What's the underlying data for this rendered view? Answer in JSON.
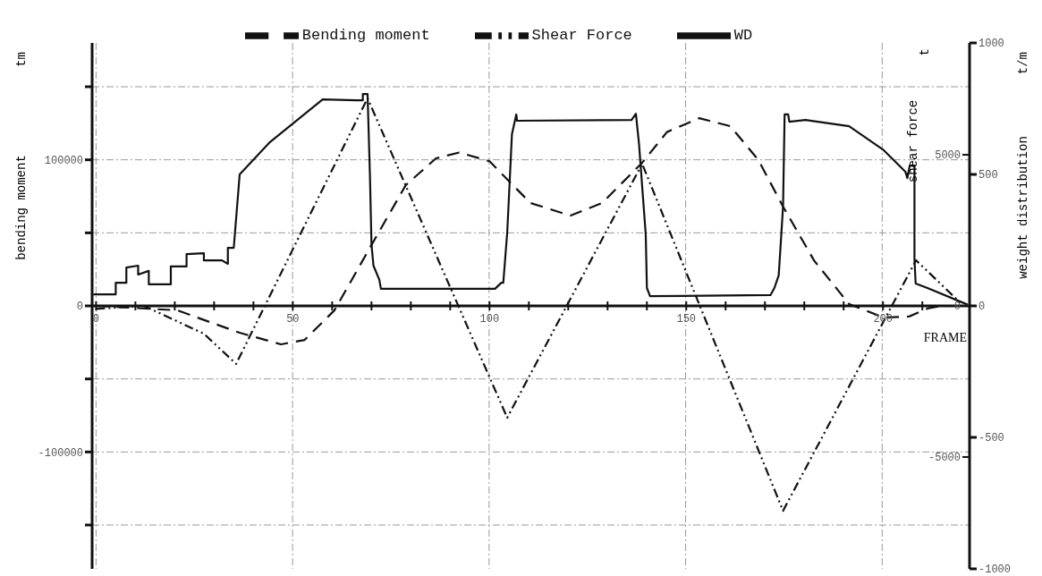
{
  "chart_data": {
    "type": "line",
    "xlabel": "FRAME",
    "ylabel": "bending moment tm",
    "y2label": "shear force t",
    "y3label": "weight distribution t/m",
    "legend": "top",
    "grid": true,
    "xlim": [
      -1,
      222
    ],
    "xticks": [
      0,
      {
        "value": 10,
        "label": null
      },
      {
        "value": 20,
        "label": null
      },
      {
        "value": 30,
        "label": null
      },
      {
        "value": 40,
        "label": null
      },
      50,
      {
        "value": 60,
        "label": null
      },
      {
        "value": 70,
        "label": null
      },
      {
        "value": 80,
        "label": null
      },
      {
        "value": 90,
        "label": null
      },
      100,
      {
        "value": 110,
        "label": null
      },
      {
        "value": 120,
        "label": null
      },
      {
        "value": 130,
        "label": null
      },
      {
        "value": 140,
        "label": null
      },
      150,
      {
        "value": 160,
        "label": null
      },
      {
        "value": 170,
        "label": null
      },
      {
        "value": 180,
        "label": null
      },
      {
        "value": 190,
        "label": null
      },
      200,
      {
        "value": 210,
        "label": null
      }
    ],
    "ylim": [
      -180000,
      180000
    ],
    "yticks": [
      {
        "value": -150000,
        "label": null
      },
      -100000,
      {
        "value": -50000,
        "label": null
      },
      0,
      {
        "value": 50000,
        "label": null
      },
      100000,
      {
        "value": 150000,
        "label": null
      }
    ],
    "y2lim": [
      -8700,
      8700
    ],
    "y2ticks": [
      -5000,
      0,
      5000
    ],
    "y3lim": [
      -1000,
      1000
    ],
    "y3ticks": [
      -1000,
      -500,
      0,
      500,
      1000
    ],
    "series": [
      {
        "name": "Bending moment",
        "color": "#111111",
        "line_style": "dashed",
        "axis": "y",
        "x": [
          0,
          20.6,
          36.5,
          47,
          53,
          60.6,
          69.6,
          78.7,
          86.4,
          92.3,
          100,
          110.4,
          120.6,
          128.6,
          138.8,
          145.1,
          153.3,
          161.2,
          168.3,
          174.6,
          182.5,
          191.4,
          200.2,
          206.6,
          211.3,
          215
        ],
        "values": [
          0,
          -3000,
          -18400,
          -26300,
          -23300,
          -3000,
          39800,
          82600,
          101000,
          105000,
          99000,
          70400,
          61800,
          70400,
          98000,
          119000,
          128500,
          123000,
          100000,
          68000,
          31000,
          1200,
          -8000,
          -7300,
          -1800,
          0
        ]
      },
      {
        "name": "Shear Force",
        "color": "#111111",
        "line_style": "dashdot",
        "axis": "y2",
        "x": [
          0,
          12.2,
          27.4,
          35.6,
          69,
          104.5,
          138.8,
          174.6,
          208.4,
          220
        ],
        "values": [
          -100,
          0,
          -920,
          -1920,
          6870,
          -3700,
          4700,
          -6780,
          1510,
          60
        ]
      },
      {
        "name": "WD",
        "color": "#111111",
        "line_style": "solid",
        "axis": "y3",
        "x": [
          -0.7,
          5,
          5,
          7.7,
          7.7,
          10.7,
          10.7,
          13.4,
          13.4,
          19,
          19,
          23,
          23,
          27.4,
          27.4,
          32,
          33.5,
          33.5,
          35,
          36.5,
          44,
          51.5,
          57.6,
          66,
          67.8,
          67.8,
          69,
          69.6,
          70,
          70.5,
          72,
          72.4,
          101.4,
          103,
          103.5,
          104.5,
          105.7,
          106.8,
          107,
          136.1,
          137.2,
          138,
          139.7,
          140,
          140.8,
          171.4,
          172.4,
          173.5,
          174.6,
          175,
          175.9,
          176.2,
          180.3,
          191.4,
          200.2,
          205.7,
          206.2,
          206.8,
          208,
          208,
          208.3,
          211.3,
          220,
          221.5
        ],
        "values": [
          44,
          44,
          88,
          88,
          146,
          153,
          119,
          133,
          82,
          82,
          150,
          150,
          197,
          200,
          173,
          173,
          160,
          221,
          221,
          500,
          620,
          711,
          785,
          782,
          782,
          806,
          806,
          500,
          235,
          153,
          99,
          65,
          65,
          88,
          88,
          279,
          653,
          728,
          704,
          707,
          731,
          615,
          272,
          68,
          37,
          41,
          68,
          116,
          377,
          728,
          728,
          700,
          707,
          683,
          592,
          510,
          486,
          534,
          534,
          177,
          85,
          68,
          14,
          5
        ]
      }
    ]
  }
}
